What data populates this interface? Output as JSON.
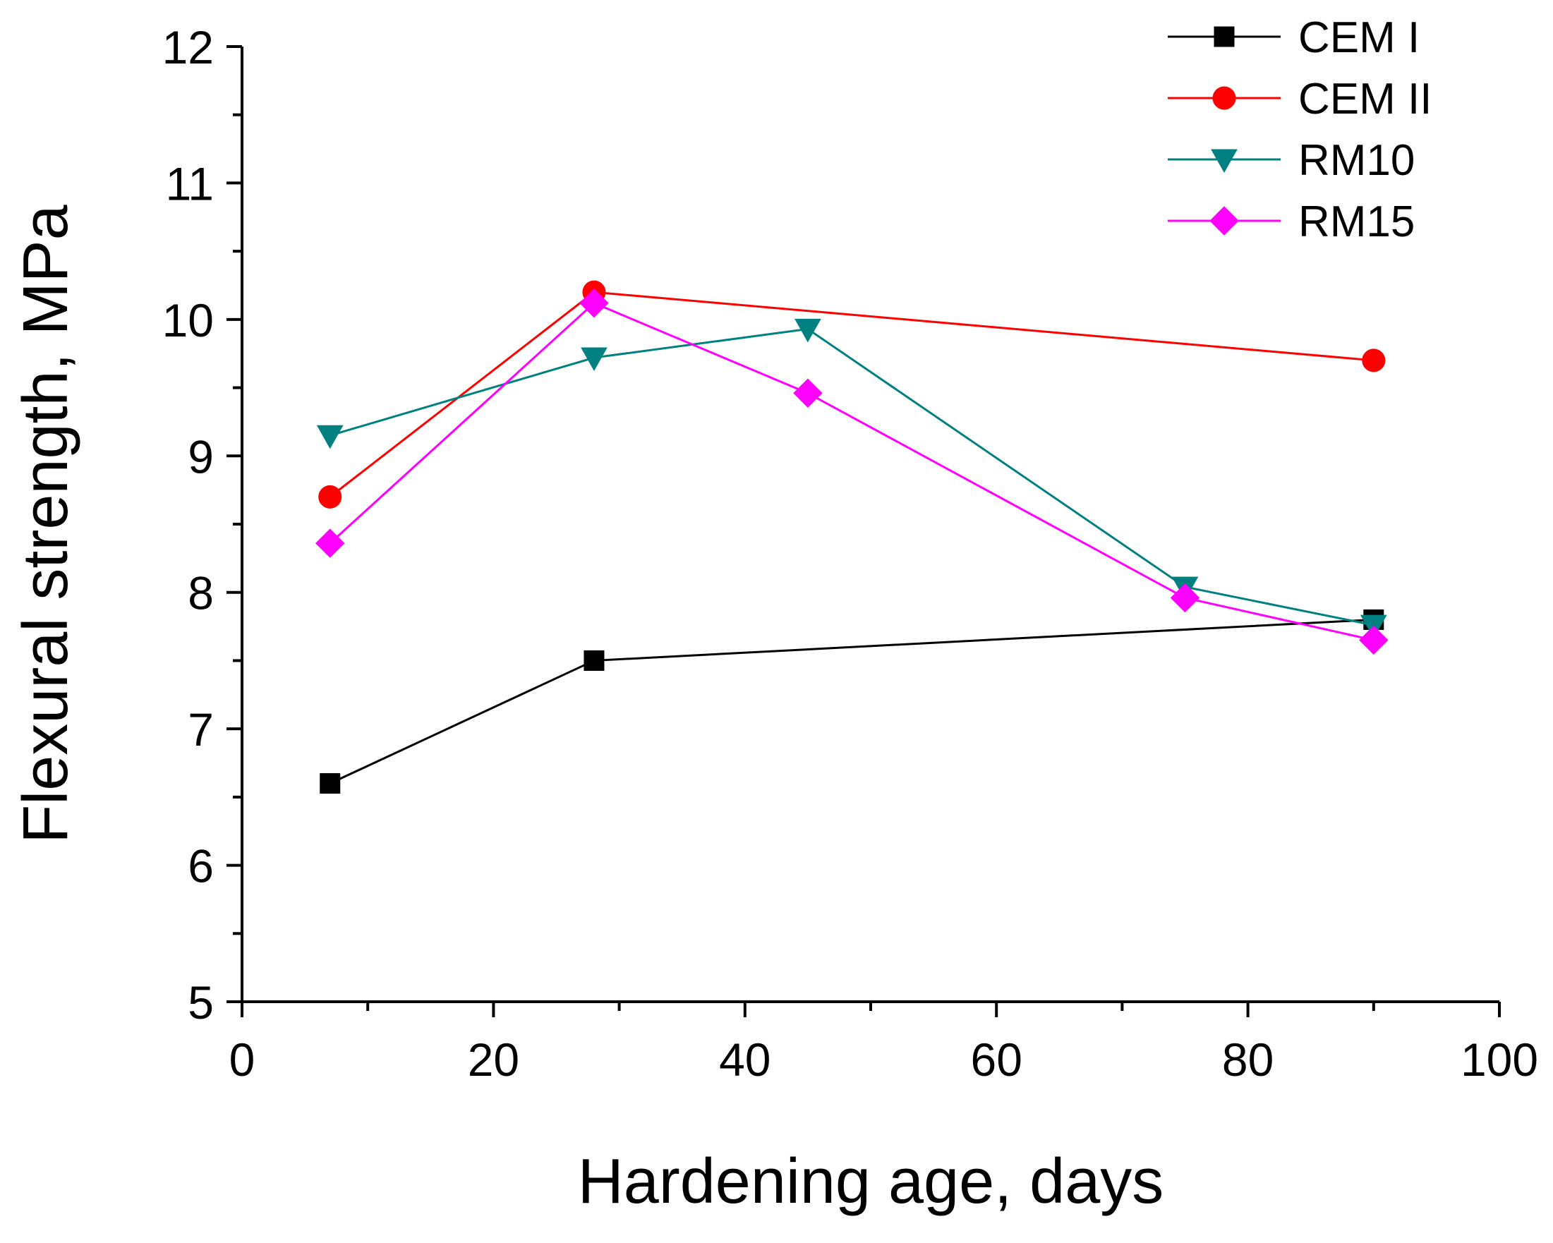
{
  "chart_data": {
    "type": "line",
    "title": "",
    "xlabel": "Hardening age, days",
    "ylabel": "Flexural strength, MPa",
    "xlim": [
      0,
      100
    ],
    "ylim": [
      5,
      12
    ],
    "x_ticks": [
      0,
      20,
      40,
      60,
      80,
      100
    ],
    "y_ticks": [
      5,
      6,
      7,
      8,
      9,
      10,
      11,
      12
    ],
    "x_tick_labels": [
      "0",
      "20",
      "40",
      "60",
      "80",
      "100"
    ],
    "y_tick_labels": [
      "5",
      "6",
      "7",
      "8",
      "9",
      "10",
      "11",
      "12"
    ],
    "grid": false,
    "legend_position": "top-right",
    "series": [
      {
        "name": "CEM I",
        "color": "#000000",
        "marker": "square",
        "x": [
          7,
          28,
          90
        ],
        "y": [
          6.6,
          7.5,
          7.8
        ]
      },
      {
        "name": "CEM II",
        "color": "#ff0000",
        "marker": "circle",
        "x": [
          7,
          28,
          90
        ],
        "y": [
          8.7,
          10.2,
          9.7
        ]
      },
      {
        "name": "RM10",
        "color": "#008080",
        "marker": "triangle-down",
        "x": [
          7,
          28,
          45,
          75,
          90
        ],
        "y": [
          9.15,
          9.72,
          9.93,
          8.04,
          7.76
        ]
      },
      {
        "name": "RM15",
        "color": "#ff00ff",
        "marker": "diamond",
        "x": [
          7,
          28,
          45,
          75,
          90
        ],
        "y": [
          8.36,
          10.12,
          9.46,
          7.96,
          7.65
        ]
      }
    ]
  }
}
